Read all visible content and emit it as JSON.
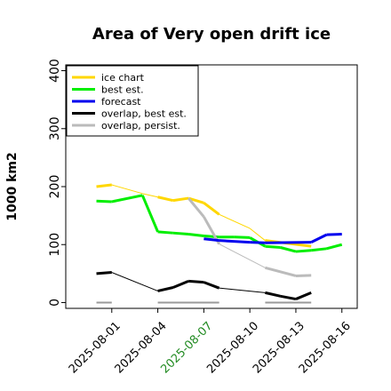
{
  "chart_data": {
    "type": "line",
    "title": "Area of Very open drift ice",
    "xlabel": "",
    "ylabel": "1000 km2",
    "ylim": [
      -10,
      410
    ],
    "xlim": [
      "2025-07-29",
      "2025-08-17"
    ],
    "yticks": [
      0,
      100,
      200,
      300,
      400
    ],
    "xticks": [
      {
        "label": "2025-08-01",
        "date": "2025-08-01",
        "color": "#000000"
      },
      {
        "label": "2025-08-04",
        "date": "2025-08-04",
        "color": "#000000"
      },
      {
        "label": "2025-08-07",
        "date": "2025-08-07",
        "color": "#228B22"
      },
      {
        "label": "2025-08-10",
        "date": "2025-08-10",
        "color": "#000000"
      },
      {
        "label": "2025-08-13",
        "date": "2025-08-13",
        "color": "#000000"
      },
      {
        "label": "2025-08-16",
        "date": "2025-08-16",
        "color": "#000000"
      }
    ],
    "grid": false,
    "legend_position": "top-left",
    "series": [
      {
        "name": "ice chart",
        "color": "#FFD700",
        "width": 3,
        "thin_width": 1,
        "points": [
          [
            "2025-07-31",
            200
          ],
          [
            "2025-08-01",
            203
          ],
          [
            "2025-08-03",
            188
          ],
          [
            "2025-08-04",
            182
          ],
          [
            "2025-08-05",
            176
          ],
          [
            "2025-08-06",
            180
          ],
          [
            "2025-08-07",
            172
          ],
          [
            "2025-08-08",
            152
          ],
          [
            "2025-08-10",
            128
          ],
          [
            "2025-08-11",
            107
          ],
          [
            "2025-08-14",
            97
          ]
        ],
        "thick_segments": [
          [
            "2025-07-31",
            "2025-08-01"
          ],
          [
            "2025-08-04",
            "2025-08-08"
          ],
          [
            "2025-08-11",
            "2025-08-14"
          ]
        ]
      },
      {
        "name": "best est.",
        "color": "#00EE00",
        "width": 3,
        "points": [
          [
            "2025-07-31",
            175
          ],
          [
            "2025-08-01",
            174
          ],
          [
            "2025-08-03",
            185
          ],
          [
            "2025-08-04",
            122
          ],
          [
            "2025-08-05",
            120
          ],
          [
            "2025-08-06",
            118
          ],
          [
            "2025-08-07",
            115
          ],
          [
            "2025-08-08",
            113
          ],
          [
            "2025-08-09",
            113
          ],
          [
            "2025-08-10",
            112
          ],
          [
            "2025-08-11",
            97
          ],
          [
            "2025-08-12",
            95
          ],
          [
            "2025-08-13",
            88
          ],
          [
            "2025-08-14",
            90
          ],
          [
            "2025-08-15",
            93
          ],
          [
            "2025-08-16",
            100
          ]
        ]
      },
      {
        "name": "forecast",
        "color": "#0000EE",
        "width": 3,
        "points": [
          [
            "2025-08-07",
            110
          ],
          [
            "2025-08-08",
            107
          ],
          [
            "2025-08-10",
            104
          ],
          [
            "2025-08-11",
            103
          ],
          [
            "2025-08-14",
            104
          ],
          [
            "2025-08-15",
            117
          ],
          [
            "2025-08-16",
            118
          ]
        ]
      },
      {
        "name": "overlap, best est.",
        "color": "#000000",
        "width": 3,
        "thin_width": 1,
        "points": [
          [
            "2025-07-31",
            50
          ],
          [
            "2025-08-01",
            52
          ],
          [
            "2025-08-04",
            20
          ],
          [
            "2025-08-05",
            26
          ],
          [
            "2025-08-06",
            37
          ],
          [
            "2025-08-07",
            35
          ],
          [
            "2025-08-08",
            25
          ],
          [
            "2025-08-11",
            17
          ],
          [
            "2025-08-12",
            11
          ],
          [
            "2025-08-13",
            6
          ],
          [
            "2025-08-14",
            17
          ]
        ],
        "thick_segments": [
          [
            "2025-07-31",
            "2025-08-01"
          ],
          [
            "2025-08-04",
            "2025-08-08"
          ],
          [
            "2025-08-11",
            "2025-08-14"
          ]
        ]
      },
      {
        "name": "overlap, persist.",
        "color": "#BBBBBB",
        "width": 3,
        "thin_width": 1,
        "points": [
          [
            "2025-08-06",
            180
          ],
          [
            "2025-08-07",
            148
          ],
          [
            "2025-08-08",
            101
          ],
          [
            "2025-08-11",
            60
          ],
          [
            "2025-08-13",
            46
          ],
          [
            "2025-08-14",
            47
          ]
        ],
        "thick_segments": [
          [
            "2025-08-06",
            "2025-08-08"
          ],
          [
            "2025-08-11",
            "2025-08-14"
          ]
        ]
      }
    ],
    "zero_markers": {
      "color": "#999999",
      "segments": [
        [
          "2025-07-31",
          "2025-08-01"
        ],
        [
          "2025-08-04",
          "2025-08-08"
        ],
        [
          "2025-08-11",
          "2025-08-14"
        ]
      ]
    }
  }
}
